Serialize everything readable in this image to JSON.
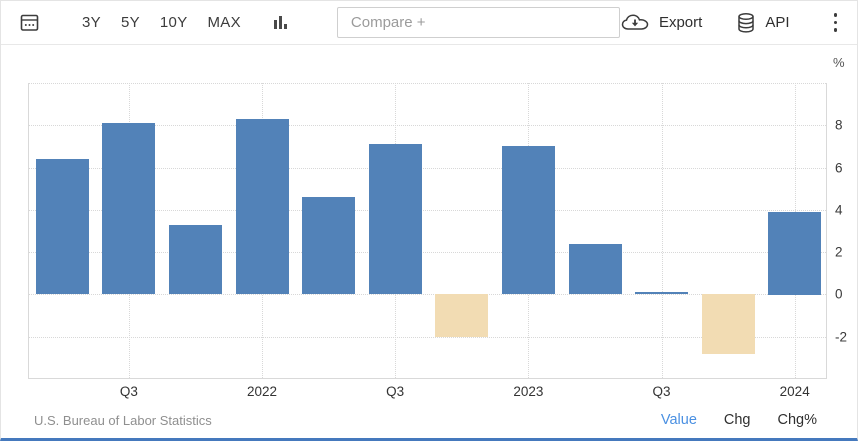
{
  "toolbar": {
    "range_buttons": [
      "3Y",
      "5Y",
      "10Y",
      "MAX"
    ],
    "compare_placeholder": "Compare +",
    "export_label": "Export",
    "api_label": "API"
  },
  "footer": {
    "source": "U.S. Bureau of Labor Statistics",
    "links": [
      {
        "label": "Value",
        "active": true
      },
      {
        "label": "Chg",
        "active": false
      },
      {
        "label": "Chg%",
        "active": false
      }
    ]
  },
  "chart_data": {
    "type": "bar",
    "unit": "%",
    "values": [
      6.4,
      8.1,
      3.3,
      8.3,
      4.6,
      7.1,
      -2.0,
      7.0,
      2.4,
      0.1,
      -2.8,
      3.9
    ],
    "x_tick_labels": [
      "Q3",
      "2022",
      "Q3",
      "2023",
      "Q3",
      "2024"
    ],
    "x_tick_bar_indices": [
      1,
      3,
      5,
      7,
      9,
      11
    ],
    "y_tick_values": [
      8,
      6,
      4,
      2,
      0,
      -2
    ],
    "grid_values": [
      10,
      8,
      6,
      4,
      2,
      0,
      -2
    ],
    "ylim": [
      -4,
      10
    ],
    "grid": true,
    "y_axis_side": "right",
    "legend": false
  },
  "colors": {
    "bar_positive": "#5282B8",
    "bar_negative": "#F2DCB3",
    "active_link": "#4A90E2",
    "bottom_accent": "#4579BD"
  }
}
